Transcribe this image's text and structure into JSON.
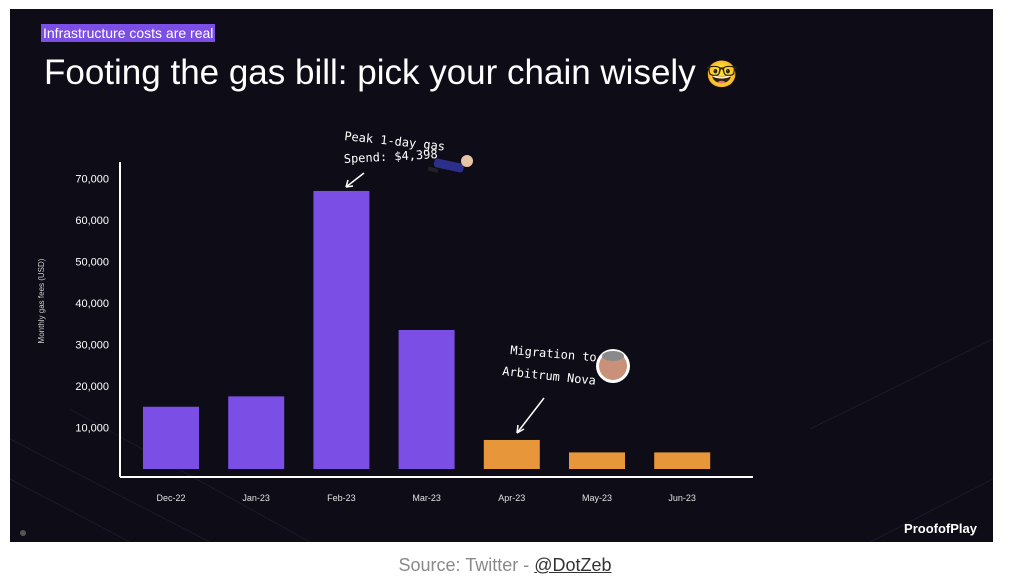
{
  "slide": {
    "tag": "Infrastructure costs are real",
    "title": "Footing the gas bill: pick your chain wisely",
    "brand": "ProofofPlay"
  },
  "caption": {
    "prefix": "Source: Twitter - ",
    "link": "@DotZeb"
  },
  "colors": {
    "background": "#0e0c17",
    "purple": "#7b4fe6",
    "orange": "#e8963a",
    "axis": "#ffffff",
    "tag_bg": "#7b4fe6"
  },
  "chart_data": {
    "type": "bar",
    "title": "",
    "xlabel": "",
    "ylabel": "Monthly gas fees (USD)",
    "categories": [
      "Dec-22",
      "Jan-23",
      "Feb-23",
      "Mar-23",
      "Apr-23",
      "May-23",
      "Jun-23"
    ],
    "values": [
      15000,
      17500,
      67000,
      33500,
      7000,
      4000,
      4000
    ],
    "bar_colors": [
      "purple",
      "purple",
      "purple",
      "purple",
      "orange",
      "orange",
      "orange"
    ],
    "yticks": [
      "10,000",
      "20,000",
      "30,000",
      "40,000",
      "50,000",
      "60,000",
      "70,000"
    ],
    "ylim": [
      0,
      75000
    ],
    "grid": false,
    "annotations": [
      {
        "lines": [
          "Peak 1-day gas",
          "Spend: $4,398"
        ],
        "target": "Feb-23"
      },
      {
        "lines": [
          "Migration to",
          "Arbitrum Nova"
        ],
        "target": "Apr-23"
      }
    ]
  }
}
